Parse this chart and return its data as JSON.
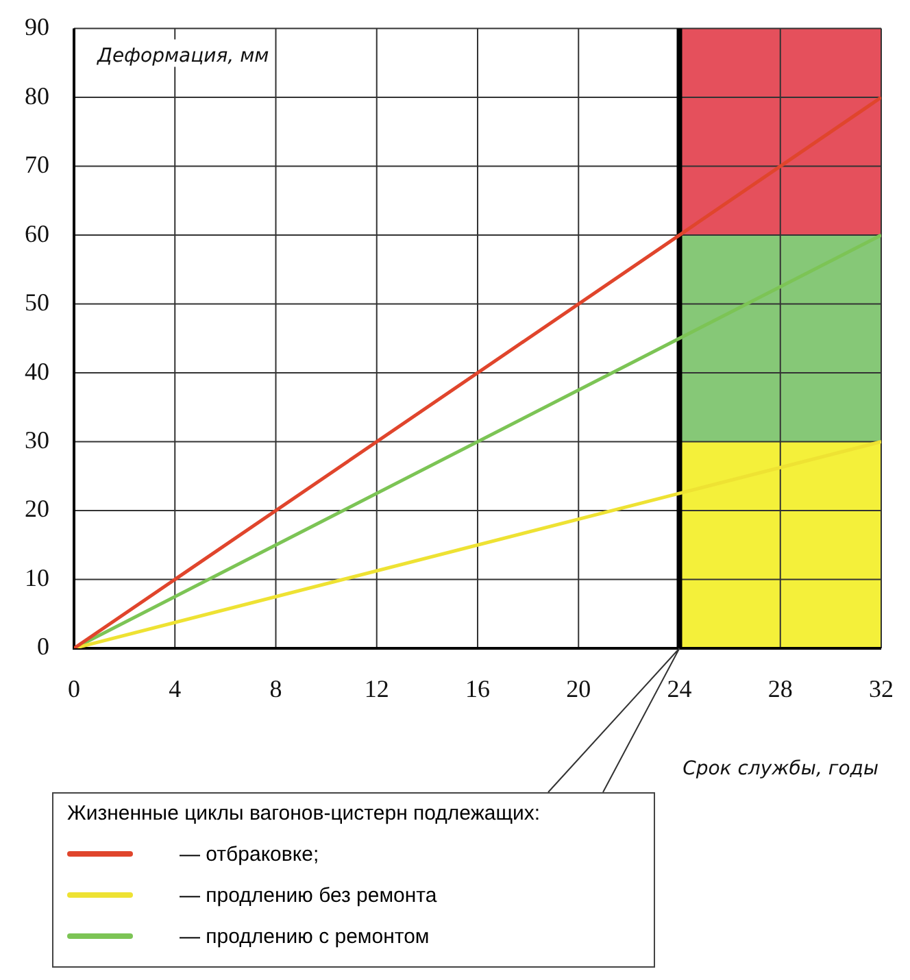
{
  "chart_data": {
    "type": "line",
    "xlabel": "Срок службы, годы",
    "ylabel": "Деформация, мм",
    "legend_title": "Жизненные циклы вагонов-цистерн подлежащих:",
    "x": [
      0,
      24,
      32
    ],
    "series": [
      {
        "name": "— отбраковке;",
        "color": "#e0452c",
        "values": [
          0,
          60,
          80
        ]
      },
      {
        "name": "— продлению без ремонта",
        "color": "#eee233",
        "values": [
          0,
          22.5,
          30
        ]
      },
      {
        "name": "— продлению с ремонтом",
        "color": "#7cc455",
        "values": [
          0,
          45,
          60
        ]
      }
    ],
    "xlim": [
      0,
      32
    ],
    "xticks": [
      0,
      4,
      8,
      12,
      16,
      20,
      24,
      28,
      32
    ],
    "ylim": [
      0,
      90
    ],
    "yticks": [
      0,
      10,
      20,
      30,
      40,
      50,
      60,
      70,
      80,
      90
    ],
    "grid": true,
    "legend": "bottom",
    "marker": "none",
    "line_style": "solid",
    "ref_lines": [
      {
        "axis": "x",
        "value": 24,
        "color": "#000000"
      }
    ],
    "bands": [
      {
        "axis": "y",
        "from": 60,
        "to": 90,
        "color": "#e5505c"
      },
      {
        "axis": "y",
        "from": 30,
        "to": 60,
        "color": "#86c877"
      },
      {
        "axis": "y",
        "from": 0,
        "to": 30,
        "color": "#f4f03a"
      }
    ]
  }
}
